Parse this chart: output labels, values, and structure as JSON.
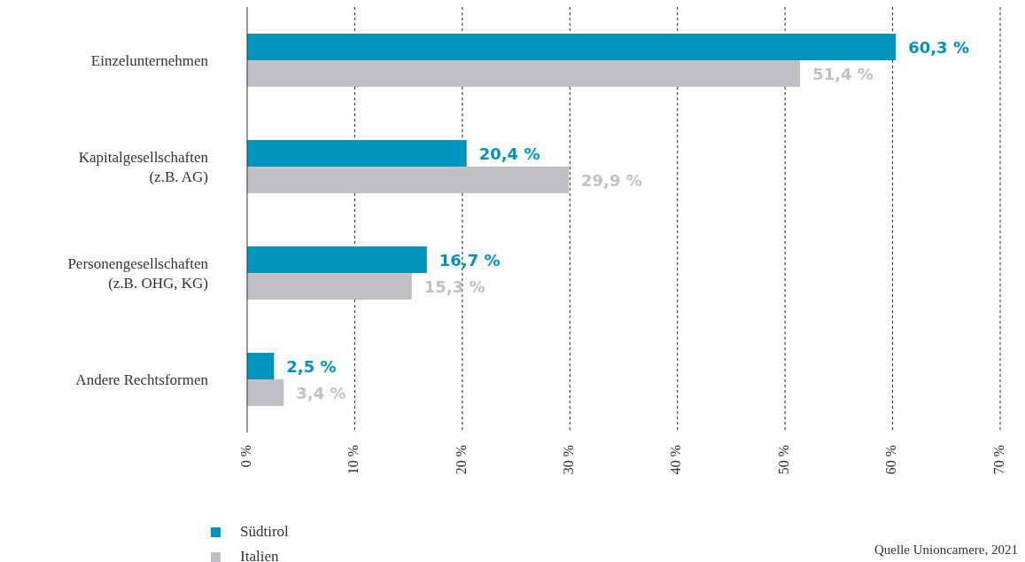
{
  "chart_data": {
    "type": "bar",
    "orientation": "horizontal",
    "categories": [
      "Einzelunternehmen",
      "Kapitalgesellschaften\n(z.B. AG)",
      "Personengesellschaften\n(z.B. OHG, KG)",
      "Andere Rechtsformen"
    ],
    "series": [
      {
        "name": "Südtirol",
        "color": "#0093bb",
        "values": [
          60.3,
          20.4,
          16.7,
          2.5
        ],
        "value_labels": [
          "60,3 %",
          "20,4 %",
          "16,7 %",
          "2,5 %"
        ]
      },
      {
        "name": "Italien",
        "color": "#c1c1c5",
        "values": [
          51.4,
          29.9,
          15.3,
          3.4
        ],
        "value_labels": [
          "51,4 %",
          "29,9 %",
          "15,3 %",
          "3,4 %"
        ]
      }
    ],
    "xlim": [
      0,
      70
    ],
    "xticks": [
      {
        "value": 0,
        "label": "0 %"
      },
      {
        "value": 10,
        "label": "10 %"
      },
      {
        "value": 20,
        "label": "20 %"
      },
      {
        "value": 30,
        "label": "30 %"
      },
      {
        "value": 40,
        "label": "40 %"
      },
      {
        "value": 50,
        "label": "50 %"
      },
      {
        "value": 60,
        "label": "60 %"
      },
      {
        "value": 70,
        "label": "70 %"
      }
    ],
    "grid": "x",
    "legend": "bottom left",
    "annotations": [
      "Quelle Unioncamere, 2021"
    ]
  }
}
